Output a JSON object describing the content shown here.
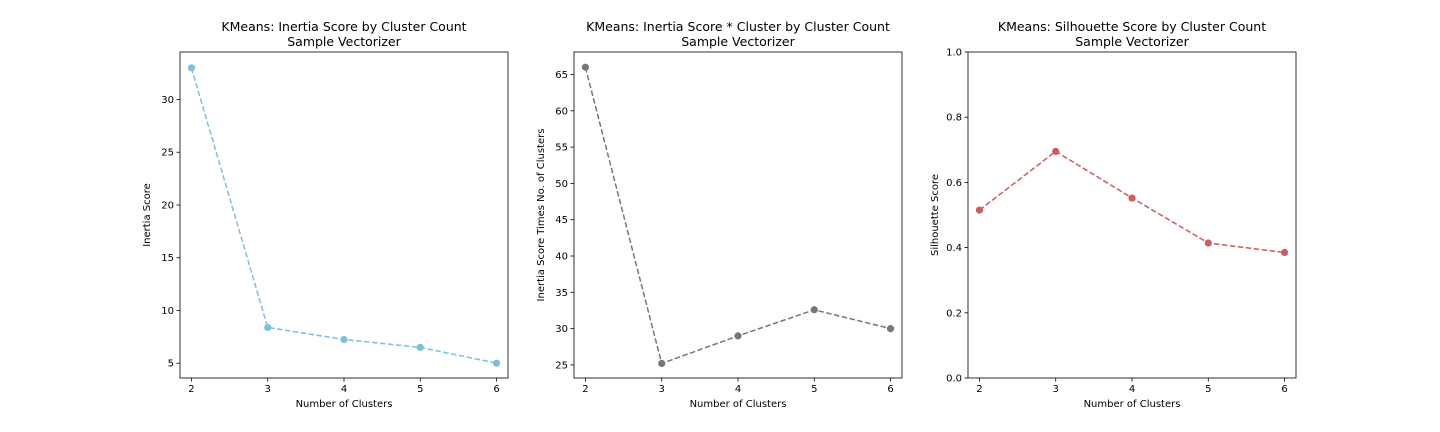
{
  "chart_data": [
    {
      "type": "line",
      "title": "KMeans: Inertia Score by Cluster Count",
      "subtitle": "Sample Vectorizer",
      "xlabel": "Number of Clusters",
      "ylabel": "Inertia Score",
      "x": [
        2,
        3,
        4,
        5,
        6
      ],
      "xticks": [
        2,
        3,
        4,
        5,
        6
      ],
      "xlim": [
        1.85,
        6.15
      ],
      "yticks": [
        5,
        10,
        15,
        20,
        25,
        30
      ],
      "ylim": [
        3.6,
        34.5
      ],
      "grid": false,
      "series": [
        {
          "values": [
            33.0,
            8.4,
            7.25,
            6.5,
            5.0
          ],
          "color": "#7ec0dc",
          "marker": "circle",
          "linestyle": "dashed"
        }
      ]
    },
    {
      "type": "line",
      "title": "KMeans: Inertia Score * Cluster by Cluster Count",
      "subtitle": "Sample Vectorizer",
      "xlabel": "Number of Clusters",
      "ylabel": "Inertia Score Times No. of Clusters",
      "x": [
        2,
        3,
        4,
        5,
        6
      ],
      "xticks": [
        2,
        3,
        4,
        5,
        6
      ],
      "xlim": [
        1.85,
        6.15
      ],
      "yticks": [
        25,
        30,
        35,
        40,
        45,
        50,
        55,
        60,
        65
      ],
      "ylim": [
        23.2,
        68.1
      ],
      "grid": false,
      "series": [
        {
          "values": [
            66.0,
            25.2,
            29.0,
            32.6,
            30.0
          ],
          "color": "#777777",
          "marker": "circle",
          "linestyle": "dashed"
        }
      ]
    },
    {
      "type": "line",
      "title": "KMeans: Silhouette Score by Cluster Count",
      "subtitle": "Sample Vectorizer",
      "xlabel": "Number of Clusters",
      "ylabel": "Silhouette Score",
      "x": [
        2,
        3,
        4,
        5,
        6
      ],
      "xticks": [
        2,
        3,
        4,
        5,
        6
      ],
      "xlim": [
        1.85,
        6.15
      ],
      "yticks": [
        0.0,
        0.2,
        0.4,
        0.6,
        0.8,
        1.0
      ],
      "yticklabels": [
        "0.0",
        "0.2",
        "0.4",
        "0.6",
        "0.8",
        "1.0"
      ],
      "ylim": [
        0.0,
        1.0
      ],
      "grid": false,
      "series": [
        {
          "values": [
            0.515,
            0.695,
            0.552,
            0.414,
            0.385
          ],
          "color": "#cd5c5c",
          "marker": "circle",
          "linestyle": "dashed"
        }
      ]
    }
  ]
}
